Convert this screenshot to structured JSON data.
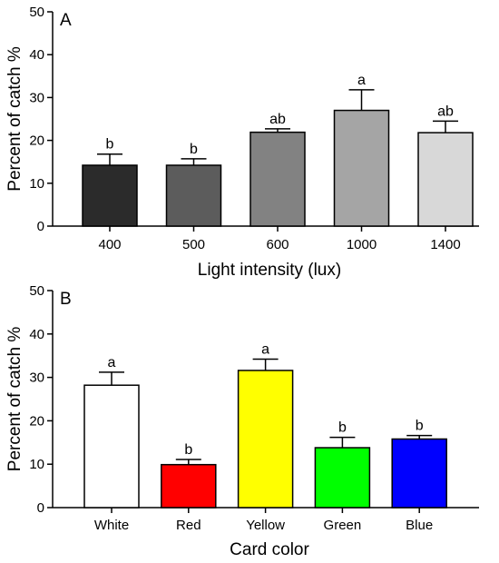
{
  "chart_data": [
    {
      "type": "bar",
      "panel_label": "A",
      "categories": [
        "400",
        "500",
        "600",
        "1000",
        "1400"
      ],
      "values": [
        14.2,
        14.2,
        21.9,
        27.0,
        21.8
      ],
      "errors": [
        2.6,
        1.5,
        0.8,
        4.8,
        2.7
      ],
      "significance": [
        "b",
        "b",
        "ab",
        "a",
        "ab"
      ],
      "colors": [
        "#2b2b2b",
        "#5c5c5c",
        "#828282",
        "#a5a5a5",
        "#d8d8d8"
      ],
      "xlabel": "Light intensity (lux)",
      "ylabel": "Percent of catch %",
      "ylim": [
        0,
        50
      ],
      "yticks": [
        "0",
        "10",
        "20",
        "30",
        "40",
        "50"
      ],
      "grid": false,
      "legend": "none"
    },
    {
      "type": "bar",
      "panel_label": "B",
      "categories": [
        "White",
        "Red",
        "Yellow",
        "Green",
        "Blue"
      ],
      "values": [
        28.2,
        9.9,
        31.6,
        13.8,
        15.8
      ],
      "errors": [
        3.0,
        1.2,
        2.6,
        2.4,
        0.8
      ],
      "significance": [
        "a",
        "b",
        "a",
        "b",
        "b"
      ],
      "colors": [
        "#ffffff",
        "#ff0000",
        "#ffff00",
        "#00ff00",
        "#0000ff"
      ],
      "xlabel": "Card color",
      "ylabel": "Percent of catch %",
      "ylim": [
        0,
        50
      ],
      "yticks": [
        "0",
        "10",
        "20",
        "30",
        "40",
        "50"
      ],
      "grid": false,
      "legend": "none"
    }
  ]
}
